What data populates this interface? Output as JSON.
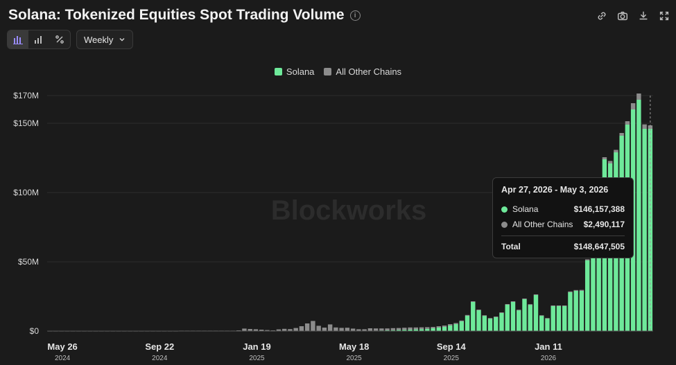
{
  "header": {
    "title": "Solana: Tokenized Equities Spot Trading Volume",
    "info_icon": "info-icon"
  },
  "actions": [
    "link-icon",
    "camera-icon",
    "download-icon",
    "expand-icon"
  ],
  "toolbar": {
    "chart_modes": [
      "bar-chart-icon",
      "stacked-bar-icon",
      "percent-icon"
    ],
    "active_mode": 0,
    "interval": "Weekly"
  },
  "watermark": "Blockworks",
  "colors": {
    "solana": "#6ee99a",
    "other": "#8c8c8c",
    "background": "#1b1b1b"
  },
  "tooltip": {
    "title": "Apr 27, 2026 - May 3, 2026",
    "rows": [
      {
        "label": "Solana",
        "value": "$146,157,388"
      },
      {
        "label": "All Other Chains",
        "value": "$2,490,117"
      }
    ],
    "total_label": "Total",
    "total_value": "$148,647,505"
  },
  "chart_data": {
    "type": "bar",
    "stacked": true,
    "legend_position": "top-center",
    "grid": true,
    "ylim": [
      0,
      170000000
    ],
    "yticks": [
      {
        "value": 0,
        "label": "$0"
      },
      {
        "value": 50000000,
        "label": "$50M"
      },
      {
        "value": 100000000,
        "label": "$100M"
      },
      {
        "value": 150000000,
        "label": "$150M"
      },
      {
        "value": 170000000,
        "label": "$170M"
      }
    ],
    "xticks": [
      {
        "index": 0,
        "label": "May 26",
        "year": "2024"
      },
      {
        "index": 17,
        "label": "Sep 22",
        "year": "2024"
      },
      {
        "index": 34,
        "label": "Jan 19",
        "year": "2025"
      },
      {
        "index": 51,
        "label": "May 18",
        "year": "2025"
      },
      {
        "index": 68,
        "label": "Sep 14",
        "year": "2025"
      },
      {
        "index": 85,
        "label": "Jan 11",
        "year": "2026"
      }
    ],
    "series": [
      {
        "name": "Solana",
        "values": [
          0,
          0,
          0,
          0,
          0,
          0,
          0,
          0,
          0,
          0,
          0,
          0,
          0,
          0,
          0,
          0,
          0,
          0,
          0,
          0,
          0,
          0,
          0,
          0,
          0,
          0,
          0,
          0,
          0,
          0,
          0,
          0,
          0,
          0,
          0,
          0,
          0,
          0,
          0,
          0,
          0,
          0,
          0,
          0,
          0,
          0,
          0,
          0,
          0,
          0,
          0,
          0,
          0,
          0,
          0,
          0,
          0,
          0.3,
          0.4,
          0.5,
          0.6,
          0.8,
          0.9,
          1.0,
          1.2,
          1.4,
          1.6,
          2,
          2.5,
          3,
          4,
          5,
          7,
          11,
          21,
          15,
          11,
          9,
          10,
          13,
          19,
          21,
          15,
          23,
          19,
          26,
          11,
          9,
          18,
          18,
          18,
          28,
          29,
          29,
          51,
          63,
          84,
          124,
          121,
          129,
          141,
          149,
          160,
          167,
          146,
          146
        ]
      },
      {
        "name": "All Other Chains",
        "values": [
          0.2,
          0.2,
          0.2,
          0.2,
          0.2,
          0.2,
          0.2,
          0.2,
          0.2,
          0.2,
          0.2,
          0.2,
          0.2,
          0.2,
          0.2,
          0.2,
          0.2,
          0.2,
          0.2,
          0.2,
          0.2,
          0.2,
          0.2,
          0.3,
          0.3,
          0.3,
          0.3,
          0.3,
          0.3,
          0.3,
          0.3,
          0.3,
          0.3,
          0.5,
          1.8,
          1.5,
          1.3,
          1.0,
          0.7,
          0.5,
          1.2,
          1.6,
          1.4,
          2.2,
          3.5,
          5.5,
          7.3,
          3.8,
          2.5,
          4.8,
          2.6,
          2.3,
          2.4,
          1.8,
          1.3,
          1.3,
          2.0,
          1.6,
          1.5,
          1.4,
          1.5,
          1.4,
          1.5,
          1.6,
          1.4,
          1.3,
          1.2,
          1,
          1,
          1,
          1,
          0.8,
          0.6,
          0.6,
          0.5,
          0.5,
          0.4,
          0.4,
          0.5,
          0.5,
          0.5,
          0.5,
          0.4,
          0.5,
          0.4,
          0.5,
          0.4,
          0.4,
          0.5,
          0.5,
          0.5,
          0.6,
          0.6,
          0.7,
          0.8,
          0.8,
          1,
          1.5,
          1.8,
          1.8,
          2,
          2.5,
          4.5,
          4.5,
          3.2,
          2.49
        ]
      }
    ],
    "values_unit": "millions USD"
  }
}
